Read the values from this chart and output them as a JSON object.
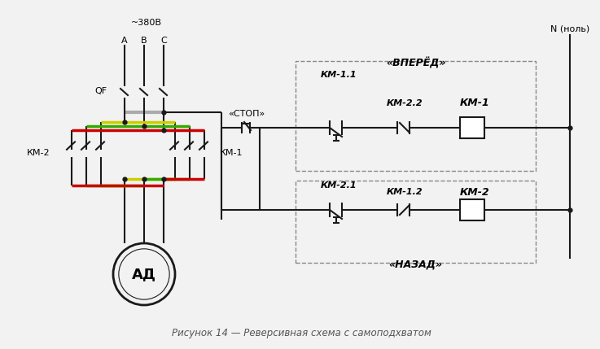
{
  "bg_color": "#f2f2f2",
  "line_color": "#1a1a1a",
  "caption": "Рисунок 14 — Реверсивная схема с самоподхватом",
  "title_voltage": "~380В",
  "phases": [
    "А",
    "В",
    "С"
  ],
  "label_QF": "QF",
  "label_KM1_power": "КМ-1",
  "label_KM2_power": "КМ-2",
  "label_AD": "АД",
  "label_stop": "«СТОП»",
  "label_forward": "«ВПЕРЁД»",
  "label_backward": "«НАЗАД»",
  "label_N": "N (ноль)",
  "label_KM11": "КМ-1.1",
  "label_KM22": "КМ-2.2",
  "label_KM1": "КМ-1",
  "label_KM21": "КМ-2.1",
  "label_KM12": "КМ-1.2",
  "label_KM2": "КМ-2",
  "red_color": "#cc0000",
  "green_color": "#33aa00",
  "yellow_color": "#cccc00",
  "gray_color": "#aaaaaa",
  "dashed_color": "#888888"
}
